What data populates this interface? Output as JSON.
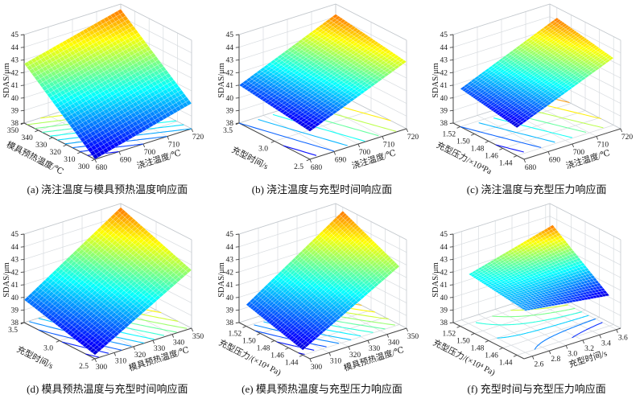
{
  "figure": {
    "background": "#ffffff",
    "colormap": "jet",
    "colormap_low": "#0000d1",
    "colormap_high": "#ff7500",
    "grid_color": "#d7dbdf",
    "box_color": "#c3c8cd",
    "axis_color": "#444444",
    "zlabel": "SDAS/μm"
  },
  "chart_data": [
    {
      "id": "a",
      "type": "surface",
      "caption": "(a) 浇注温度与模具预热温度响应面",
      "xlabel": "浇注温度/℃",
      "ylabel": "模具预热温度/℃",
      "zlabel": "SDAS/μm",
      "x_ticks": [
        "680",
        "690",
        "700",
        "710",
        "720"
      ],
      "y_ticks": [
        "300",
        "310",
        "320",
        "330",
        "340",
        "350"
      ],
      "z_ticks": [
        "38",
        "39",
        "40",
        "41",
        "42",
        "43",
        "44",
        "45"
      ],
      "x_range": [
        680,
        720
      ],
      "y_range": [
        300,
        350
      ],
      "z_range": [
        38,
        45
      ],
      "surface_corner_z": {
        "x0_y0": 38.0,
        "x1_y0": 40.0,
        "x0_y1": 42.7,
        "x1_y1": 44.6
      },
      "contour_step": 0.5,
      "grid": true
    },
    {
      "id": "b",
      "type": "surface",
      "caption": "(b) 浇注温度与充型时间响应面",
      "xlabel": "浇注温度/℃",
      "ylabel": "充型时间/s",
      "zlabel": "SDAS/μm",
      "x_ticks": [
        "680",
        "690",
        "700",
        "710",
        "720"
      ],
      "y_ticks": [
        "2.5",
        "3.0",
        "3.5"
      ],
      "z_ticks": [
        "38",
        "39",
        "40",
        "41",
        "42",
        "43",
        "44",
        "45"
      ],
      "x_range": [
        680,
        720
      ],
      "y_range": [
        2.5,
        3.5
      ],
      "z_range": [
        38,
        45
      ],
      "surface_corner_z": {
        "x0_y0": 40.2,
        "x1_y0": 43.3,
        "x0_y1": 41.0,
        "x1_y1": 44.2
      },
      "contour_step": 0.5,
      "grid": true
    },
    {
      "id": "c",
      "type": "surface",
      "caption": "(c) 浇注温度与充型压力响应面",
      "xlabel": "浇注温度/℃",
      "ylabel": "充型压力/×10⁴Pa",
      "zlabel": "SDAS/μm",
      "x_ticks": [
        "680",
        "690",
        "700",
        "710",
        "720"
      ],
      "y_ticks": [
        "1.44",
        "1.46",
        "1.48",
        "1.50",
        "1.52"
      ],
      "z_ticks": [
        "38",
        "39",
        "40",
        "41",
        "42",
        "43",
        "44",
        "45"
      ],
      "x_range": [
        680,
        720
      ],
      "y_range": [
        1.43,
        1.53
      ],
      "z_range": [
        38,
        45
      ],
      "surface_corner_z": {
        "x0_y0": 40.2,
        "x1_y0": 43.3,
        "x0_y1": 41.0,
        "x1_y1": 44.2
      },
      "contour_step": 0.5,
      "grid": true
    },
    {
      "id": "d",
      "type": "surface",
      "caption": "(d) 模具预热温度与充型时间响应面",
      "xlabel": "模具预热温度/℃",
      "ylabel": "充型时间/s",
      "zlabel": "SDAS/μm",
      "x_ticks": [
        "300",
        "310",
        "320",
        "330",
        "340",
        "350"
      ],
      "y_ticks": [
        "2.5",
        "3.0",
        "3.5"
      ],
      "z_ticks": [
        "38",
        "39",
        "40",
        "41",
        "42",
        "43",
        "44",
        "45"
      ],
      "x_range": [
        300,
        350
      ],
      "y_range": [
        2.5,
        3.5
      ],
      "z_range": [
        38,
        45
      ],
      "surface_corner_z": {
        "x0_y0": 38.3,
        "x1_y0": 42.6,
        "x0_y1": 39.8,
        "x1_y1": 44.7
      },
      "contour_step": 0.5,
      "grid": true
    },
    {
      "id": "e",
      "type": "surface",
      "caption": "(e) 模具预热温度与充型压力响应面",
      "xlabel": "模具预热温度/℃",
      "ylabel": "充型压力/(×10⁴ Pa)",
      "zlabel": "SDAS/μm",
      "x_ticks": [
        "300",
        "310",
        "320",
        "330",
        "340",
        "350"
      ],
      "y_ticks": [
        "1.44",
        "1.46",
        "1.48",
        "1.50",
        "1.52"
      ],
      "z_ticks": [
        "38",
        "39",
        "40",
        "41",
        "42",
        "43",
        "44",
        "45"
      ],
      "x_range": [
        300,
        350
      ],
      "y_range": [
        1.43,
        1.53
      ],
      "z_range": [
        38,
        45
      ],
      "surface_corner_z": {
        "x0_y0": 38.4,
        "x1_y0": 42.6,
        "x0_y1": 39.7,
        "x1_y1": 44.7
      },
      "contour_step": 0.5,
      "grid": true
    },
    {
      "id": "f",
      "type": "surface",
      "caption": "(f) 充型时间与充型压力响应面",
      "xlabel": "充型时间/s",
      "ylabel": "充型压力/(×10⁴ Pa)",
      "zlabel": "SDAS/μm",
      "x_ticks": [
        "2.6",
        "2.8",
        "3.0",
        "3.2",
        "3.4",
        "3.6"
      ],
      "y_ticks": [
        "1.44",
        "1.46",
        "1.48",
        "1.50",
        "1.52"
      ],
      "z_ticks": [
        "38",
        "39",
        "40",
        "41",
        "42",
        "43",
        "44",
        "45"
      ],
      "x_range": [
        2.5,
        3.65
      ],
      "y_range": [
        1.43,
        1.53
      ],
      "z_range": [
        38,
        45
      ],
      "surface_corner_z": {
        "x0_y0": 41.3,
        "x1_y0": 40.4,
        "x0_y1": 41.9,
        "x1_y1": 43.7
      },
      "contour_step": 0.4,
      "grid": true
    }
  ]
}
